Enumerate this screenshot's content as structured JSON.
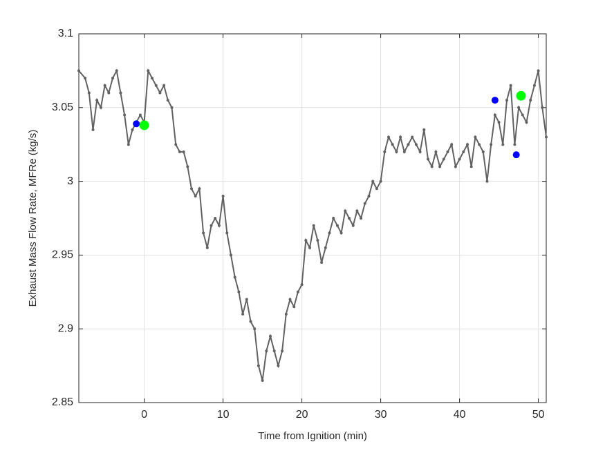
{
  "chart_data": {
    "type": "line",
    "xlabel": "Time from Ignition (min)",
    "ylabel": "Exhaust Mass Flow Rate, MFRe (kg/s)",
    "xlim": [
      -8.3,
      51
    ],
    "xticks": [
      0,
      10,
      20,
      30,
      40,
      50
    ],
    "ylim": [
      2.85,
      3.1
    ],
    "yticks": [
      2.85,
      2.9,
      2.95,
      3,
      3.05,
      3.1
    ],
    "grid": true,
    "series": [
      {
        "color": "#616161",
        "marker": true,
        "x": [
          -8.3,
          -7.5,
          -7,
          -6.5,
          -6,
          -5.5,
          -5,
          -4.5,
          -4,
          -3.5,
          -3,
          -2.5,
          -2,
          -1.5,
          -1,
          -0.5,
          0,
          0.5,
          1,
          1.5,
          2,
          2.5,
          3,
          3.5,
          4,
          4.5,
          5,
          5.5,
          6,
          6.5,
          7,
          7.5,
          8,
          8.5,
          9,
          9.5,
          10,
          10.5,
          11,
          11.5,
          12,
          12.5,
          13,
          13.5,
          14,
          14.5,
          15,
          15.5,
          16,
          16.5,
          17,
          17.5,
          18,
          18.5,
          19,
          19.5,
          20,
          20.5,
          21,
          21.5,
          22,
          22.5,
          23,
          23.5,
          24,
          24.5,
          25,
          25.5,
          26,
          26.5,
          27,
          27.5,
          28,
          28.5,
          29,
          29.5,
          30,
          30.5,
          31,
          31.5,
          32,
          32.5,
          33,
          33.5,
          34,
          34.5,
          35,
          35.5,
          36,
          36.5,
          37,
          37.5,
          38,
          38.5,
          39,
          39.5,
          40,
          40.5,
          41,
          41.5,
          42,
          42.5,
          43,
          43.5,
          44,
          44.5,
          45,
          45.5,
          46,
          46.5,
          47,
          47.5,
          48,
          48.5,
          49,
          49.5,
          50,
          50.5,
          51
        ],
        "values": [
          3.075,
          3.07,
          3.06,
          3.035,
          3.055,
          3.05,
          3.065,
          3.06,
          3.07,
          3.075,
          3.06,
          3.045,
          3.025,
          3.035,
          3.04,
          3.045,
          3.04,
          3.075,
          3.07,
          3.065,
          3.06,
          3.065,
          3.055,
          3.05,
          3.025,
          3.02,
          3.02,
          3.01,
          2.995,
          2.99,
          2.995,
          2.965,
          2.955,
          2.97,
          2.975,
          2.97,
          2.99,
          2.965,
          2.95,
          2.935,
          2.925,
          2.91,
          2.92,
          2.905,
          2.9,
          2.875,
          2.865,
          2.885,
          2.895,
          2.885,
          2.875,
          2.885,
          2.91,
          2.92,
          2.915,
          2.925,
          2.93,
          2.96,
          2.955,
          2.97,
          2.96,
          2.945,
          2.955,
          2.965,
          2.975,
          2.97,
          2.965,
          2.98,
          2.975,
          2.97,
          2.98,
          2.975,
          2.985,
          2.99,
          3.0,
          2.995,
          3.0,
          3.02,
          3.03,
          3.025,
          3.02,
          3.03,
          3.02,
          3.025,
          3.03,
          3.025,
          3.02,
          3.035,
          3.015,
          3.01,
          3.02,
          3.01,
          3.015,
          3.02,
          3.025,
          3.01,
          3.015,
          3.02,
          3.025,
          3.01,
          3.03,
          3.025,
          3.02,
          3.0,
          3.025,
          3.045,
          3.04,
          3.025,
          3.055,
          3.065,
          3.025,
          3.05,
          3.045,
          3.04,
          3.055,
          3.065,
          3.075,
          3.05,
          3.03
        ]
      },
      {
        "color": "#0000ff",
        "scatter": true,
        "size": 5,
        "x": [
          -1,
          44.5,
          47.2
        ],
        "values": [
          3.039,
          3.055,
          3.018
        ]
      },
      {
        "color": "#00ff00",
        "scatter": true,
        "size": 7,
        "x": [
          0,
          47.8
        ],
        "values": [
          3.038,
          3.058
        ]
      }
    ]
  }
}
